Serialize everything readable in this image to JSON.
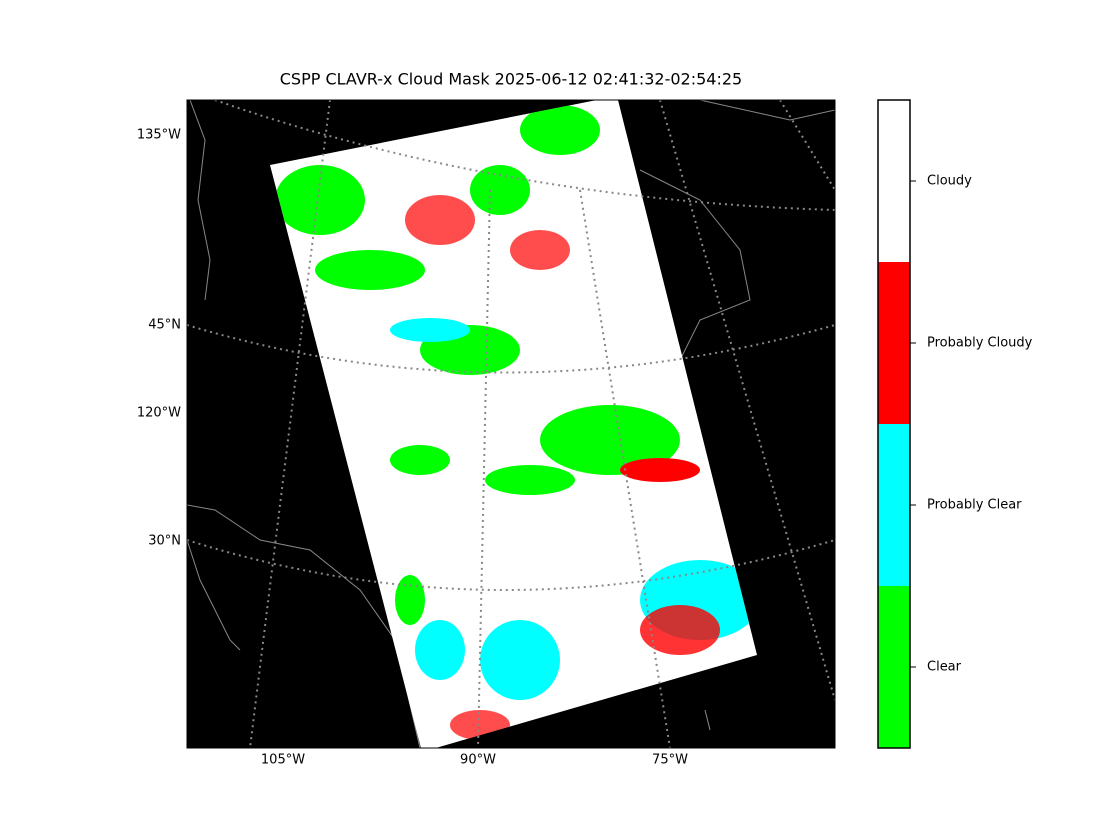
{
  "title": "CSPP CLAVR-x Cloud Mask 2025-06-12 02:41:32-02:54:25",
  "map": {
    "left_labels": [
      "135°W",
      "45°N",
      "120°W",
      "30°N"
    ],
    "bottom_labels": [
      "105°W",
      "90°W",
      "75°W"
    ]
  },
  "colorbar": {
    "categories": [
      {
        "label": "Clear",
        "color": "#00ff00"
      },
      {
        "label": "Probably Clear",
        "color": "#00ffff"
      },
      {
        "label": "Probably Cloudy",
        "color": "#ff0000"
      },
      {
        "label": "Cloudy",
        "color": "#ffffff"
      }
    ]
  }
}
